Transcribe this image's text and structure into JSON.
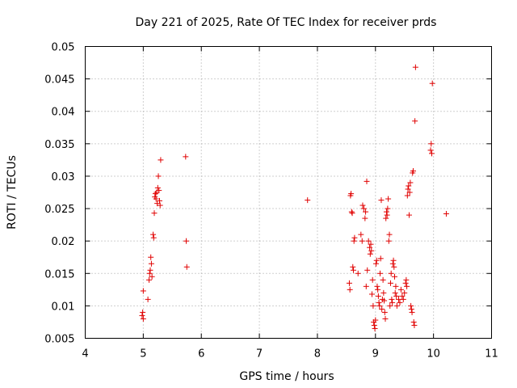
{
  "chart_data": {
    "type": "scatter",
    "title": "Day 221 of 2025, Rate Of TEC Index for receiver prds",
    "xlabel": "GPS time / hours",
    "ylabel": "ROTI / TECUs",
    "xlim": [
      4,
      11
    ],
    "ylim": [
      0.005,
      0.05
    ],
    "xticks": [
      4,
      5,
      6,
      7,
      8,
      9,
      10,
      11
    ],
    "xtick_labels": [
      "4",
      "5",
      "6",
      "7",
      "8",
      "9",
      "10",
      "11"
    ],
    "yticks": [
      0.005,
      0.01,
      0.015,
      0.02,
      0.025,
      0.03,
      0.035,
      0.04,
      0.045,
      0.05
    ],
    "ytick_labels": [
      "0.005",
      "0.01",
      "0.015",
      "0.02",
      "0.025",
      "0.03",
      "0.035",
      "0.04",
      "0.045",
      "0.05"
    ],
    "grid": true,
    "marker": "+",
    "marker_color": "#e00000",
    "series": [
      {
        "name": "prds",
        "points": [
          [
            4.98,
            0.0085
          ],
          [
            4.99,
            0.009
          ],
          [
            5.0,
            0.008
          ],
          [
            5.0,
            0.0123
          ],
          [
            5.08,
            0.011
          ],
          [
            5.1,
            0.014
          ],
          [
            5.11,
            0.015
          ],
          [
            5.12,
            0.0155
          ],
          [
            5.13,
            0.0175
          ],
          [
            5.14,
            0.0165
          ],
          [
            5.15,
            0.0145
          ],
          [
            5.17,
            0.021
          ],
          [
            5.18,
            0.0205
          ],
          [
            5.19,
            0.0243
          ],
          [
            5.2,
            0.0268
          ],
          [
            5.21,
            0.0273
          ],
          [
            5.22,
            0.0265
          ],
          [
            5.23,
            0.0275
          ],
          [
            5.24,
            0.0258
          ],
          [
            5.25,
            0.0282
          ],
          [
            5.26,
            0.03
          ],
          [
            5.27,
            0.0278
          ],
          [
            5.28,
            0.0262
          ],
          [
            5.29,
            0.0255
          ],
          [
            5.3,
            0.0325
          ],
          [
            5.73,
            0.033
          ],
          [
            5.74,
            0.02
          ],
          [
            5.75,
            0.016
          ],
          [
            7.83,
            0.0263
          ],
          [
            8.55,
            0.0135
          ],
          [
            8.56,
            0.0125
          ],
          [
            8.57,
            0.027
          ],
          [
            8.58,
            0.0273
          ],
          [
            8.59,
            0.0245
          ],
          [
            8.6,
            0.0243
          ],
          [
            8.61,
            0.016
          ],
          [
            8.62,
            0.0155
          ],
          [
            8.63,
            0.02
          ],
          [
            8.64,
            0.0205
          ],
          [
            8.7,
            0.015
          ],
          [
            8.75,
            0.021
          ],
          [
            8.77,
            0.02
          ],
          [
            8.78,
            0.0255
          ],
          [
            8.8,
            0.025
          ],
          [
            8.82,
            0.0235
          ],
          [
            8.83,
            0.0245
          ],
          [
            8.84,
            0.013
          ],
          [
            8.85,
            0.0292
          ],
          [
            8.86,
            0.0155
          ],
          [
            8.88,
            0.02
          ],
          [
            8.9,
            0.019
          ],
          [
            8.91,
            0.018
          ],
          [
            8.92,
            0.0195
          ],
          [
            8.93,
            0.0185
          ],
          [
            8.94,
            0.0118
          ],
          [
            8.95,
            0.014
          ],
          [
            8.96,
            0.01
          ],
          [
            8.97,
            0.0075
          ],
          [
            8.98,
            0.007
          ],
          [
            8.99,
            0.0065
          ],
          [
            9.0,
            0.0078
          ],
          [
            9.01,
            0.0165
          ],
          [
            9.02,
            0.017
          ],
          [
            9.03,
            0.013
          ],
          [
            9.04,
            0.0125
          ],
          [
            9.05,
            0.0115
          ],
          [
            9.06,
            0.0105
          ],
          [
            9.07,
            0.01
          ],
          [
            9.08,
            0.015
          ],
          [
            9.09,
            0.0173
          ],
          [
            9.1,
            0.0263
          ],
          [
            9.11,
            0.0095
          ],
          [
            9.12,
            0.011
          ],
          [
            9.13,
            0.014
          ],
          [
            9.14,
            0.012
          ],
          [
            9.15,
            0.0108
          ],
          [
            9.16,
            0.009
          ],
          [
            9.17,
            0.008
          ],
          [
            9.18,
            0.0235
          ],
          [
            9.19,
            0.0245
          ],
          [
            9.2,
            0.024
          ],
          [
            9.21,
            0.025
          ],
          [
            9.22,
            0.0265
          ],
          [
            9.23,
            0.02
          ],
          [
            9.24,
            0.021
          ],
          [
            9.25,
            0.01
          ],
          [
            9.26,
            0.0135
          ],
          [
            9.27,
            0.015
          ],
          [
            9.28,
            0.011
          ],
          [
            9.29,
            0.0105
          ],
          [
            9.3,
            0.0165
          ],
          [
            9.31,
            0.017
          ],
          [
            9.32,
            0.016
          ],
          [
            9.33,
            0.0145
          ],
          [
            9.34,
            0.012
          ],
          [
            9.35,
            0.013
          ],
          [
            9.36,
            0.0115
          ],
          [
            9.37,
            0.01
          ],
          [
            9.4,
            0.011
          ],
          [
            9.42,
            0.0105
          ],
          [
            9.44,
            0.0125
          ],
          [
            9.46,
            0.0115
          ],
          [
            9.48,
            0.011
          ],
          [
            9.5,
            0.012
          ],
          [
            9.52,
            0.0135
          ],
          [
            9.53,
            0.014
          ],
          [
            9.54,
            0.013
          ],
          [
            9.55,
            0.027
          ],
          [
            9.56,
            0.028
          ],
          [
            9.57,
            0.0285
          ],
          [
            9.58,
            0.024
          ],
          [
            9.59,
            0.0275
          ],
          [
            9.6,
            0.029
          ],
          [
            9.61,
            0.01
          ],
          [
            9.62,
            0.0095
          ],
          [
            9.63,
            0.009
          ],
          [
            9.64,
            0.0305
          ],
          [
            9.65,
            0.0308
          ],
          [
            9.66,
            0.0075
          ],
          [
            9.67,
            0.007
          ],
          [
            9.68,
            0.0385
          ],
          [
            9.69,
            0.0468
          ],
          [
            9.95,
            0.034
          ],
          [
            9.96,
            0.035
          ],
          [
            9.97,
            0.0335
          ],
          [
            9.98,
            0.0443
          ],
          [
            10.22,
            0.0242
          ]
        ]
      }
    ]
  }
}
